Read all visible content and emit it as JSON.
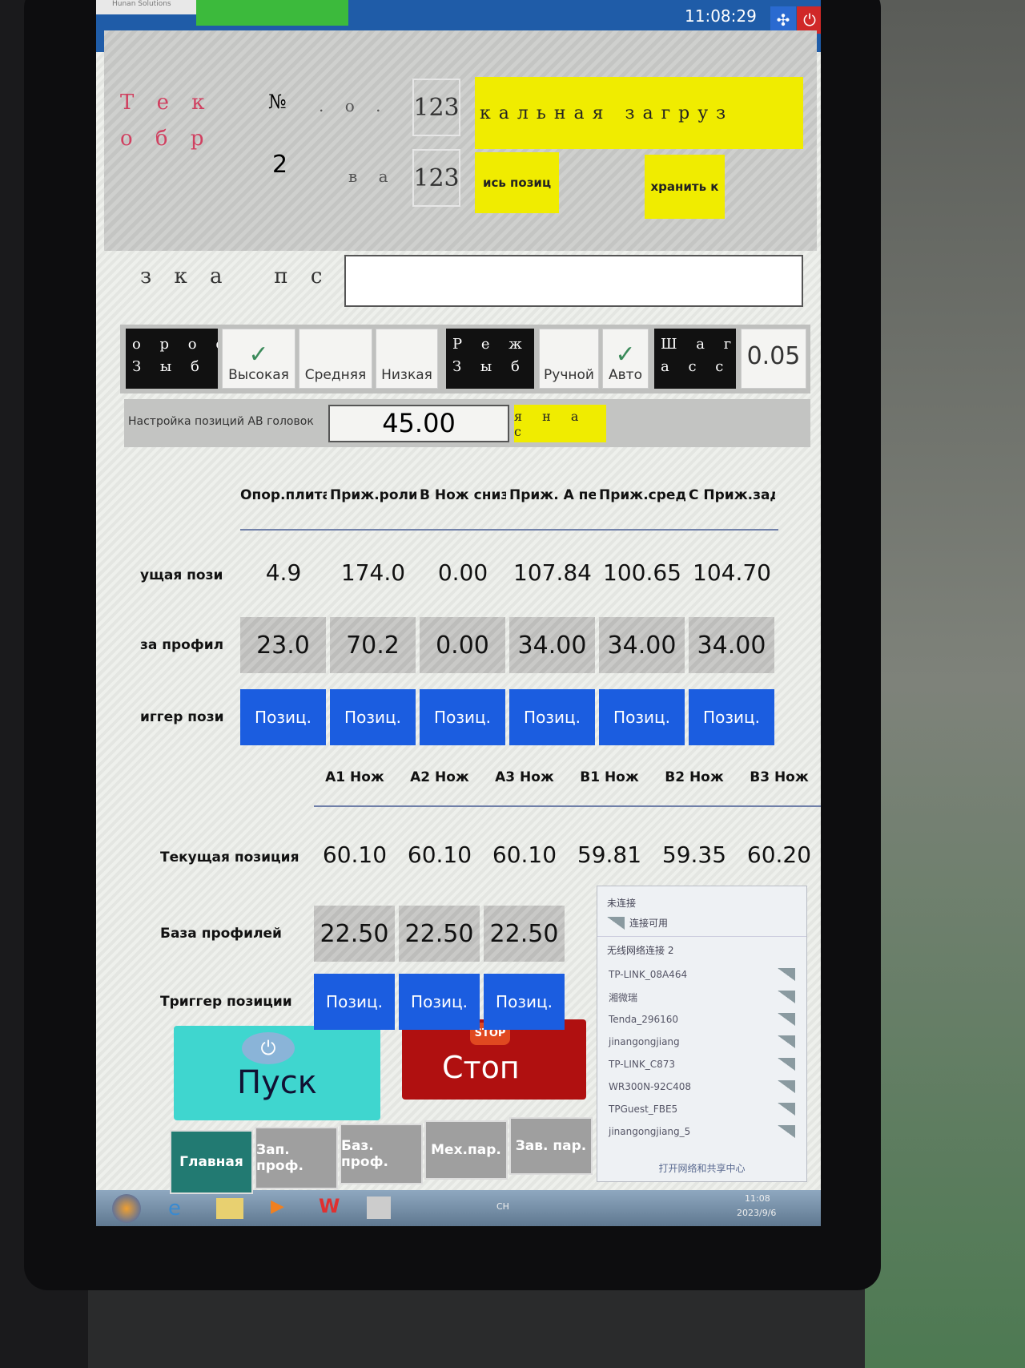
{
  "header": {
    "logo_text": "Hunan Solutions",
    "time": "11:08:29",
    "icons": [
      "collapse-icon",
      "power-icon"
    ]
  },
  "top_panel": {
    "current_label_line1": "Т е к",
    "current_label_line2": "о б р",
    "number_label": "№",
    "number_value": "2",
    "field1_label": ". о .",
    "field1_value": "123",
    "field2_label": "в а",
    "field2_value": "123",
    "load_button": "кальная загруз",
    "write_button": "ись позиц",
    "save_button": "хранить к"
  },
  "order": {
    "label": "з к а   п с",
    "value": ""
  },
  "toggles": {
    "speed_label": "о р о с\nЗ ы б о р",
    "speed_options": [
      {
        "label": "Высокая",
        "checked": true
      },
      {
        "label": "Средняя",
        "checked": false
      },
      {
        "label": "Низкая",
        "checked": false
      }
    ],
    "mode_label": "Р е ж и м\nЗ ы б о р",
    "mode_options": [
      {
        "label": "Ручной",
        "checked": false
      },
      {
        "label": "Авто",
        "checked": true
      }
    ],
    "step_label": "Ш а г\nа с с т",
    "step_value": "0.05"
  },
  "ab_setup": {
    "label": "Настройка позиций AB головок",
    "value": "45.00",
    "button": "я   н а с"
  },
  "table1": {
    "headers": [
      "Опор.плита",
      "Приж.ролик",
      "В Нож сниз",
      "Приж. A пер",
      "Приж.сред",
      "С Приж.зад"
    ],
    "row_labels": [
      "ущая пози",
      "за профил",
      "иггер пози"
    ],
    "current": [
      "4.9",
      "174.0",
      "0.00",
      "107.84",
      "100.65",
      "104.70"
    ],
    "base": [
      "23.0",
      "70.2",
      "0.00",
      "34.00",
      "34.00",
      "34.00"
    ],
    "trigger": [
      "Позиц.",
      "Позиц.",
      "Позиц.",
      "Позиц.",
      "Позиц.",
      "Позиц."
    ]
  },
  "table2": {
    "headers": [
      "A1 Нож",
      "A2 Нож",
      "A3 Нож",
      "B1 Нож",
      "B2 Нож",
      "B3 Нож"
    ],
    "row_labels": [
      "Текущая позиция",
      "База профилей",
      "Триггер позиции"
    ],
    "current": [
      "60.10",
      "60.10",
      "60.10",
      "59.81",
      "59.35",
      "60.20"
    ],
    "base": [
      "22.50",
      "22.50",
      "22.50"
    ],
    "trigger": [
      "Позиц.",
      "Позиц.",
      "Позиц."
    ]
  },
  "controls": {
    "start": "Пуск",
    "stop": "Стоп",
    "stop_sign": "STOP"
  },
  "nav": [
    "Главная",
    "Зап. проф.",
    "Баз. проф.",
    "Мех.пар.",
    "Зав. пар."
  ],
  "wifi_popup": {
    "status": "未连接",
    "available": "连接可用",
    "section": "无线网络连接 2",
    "networks": [
      "TP-LINK_08A464",
      "湘微瑞",
      "Tenda_296160",
      "jinangongjiang",
      "TP-LINK_C873",
      "WR300N-92C408",
      "TPGuest_FBE5",
      "jinangongjiang_5"
    ],
    "footer": "打开网络和共享中心"
  },
  "taskbar": {
    "time": "11:08",
    "date": "2023/9/6",
    "lang": "CH"
  },
  "colors": {
    "topbar": "#1f5ca8",
    "yellow": "#f0ec00",
    "blue_button": "#1b5de0",
    "start": "#3fd6cf",
    "stop": "#b01010",
    "nav_active": "#227a72"
  }
}
